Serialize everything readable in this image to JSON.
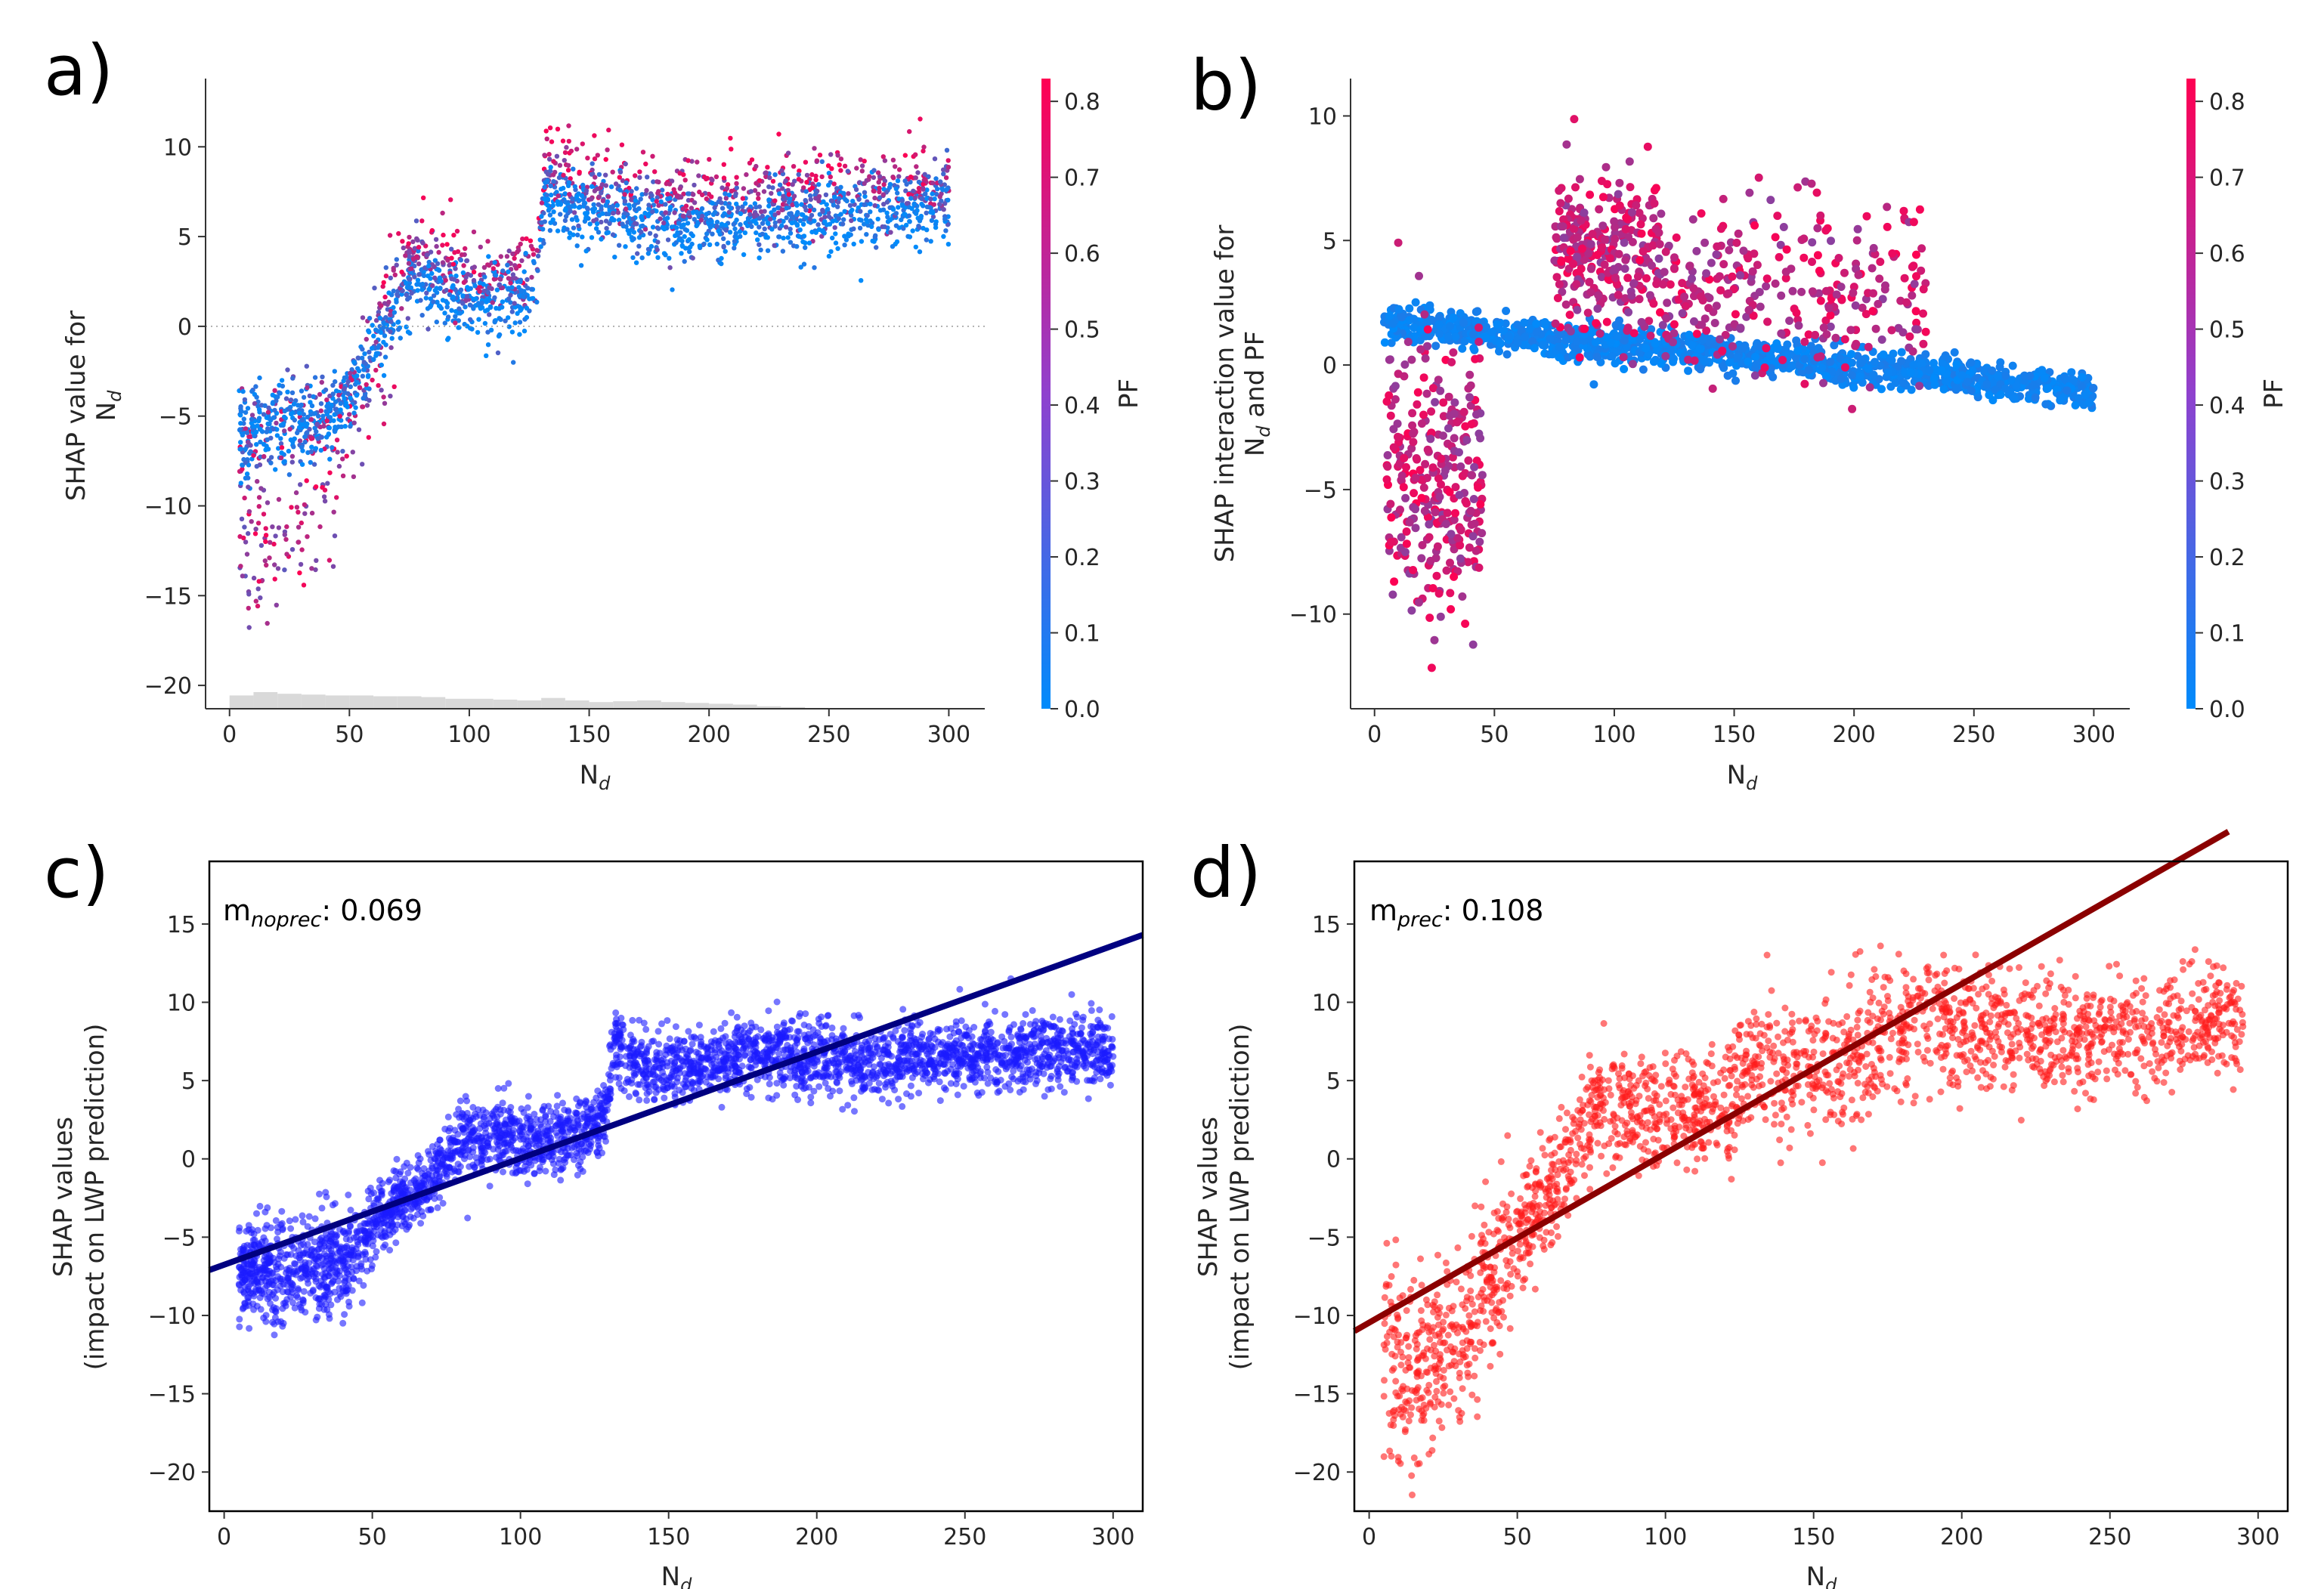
{
  "colors": {
    "pf_low": "#008bfb",
    "pf_high": "#ff0052",
    "c_points": "#1a1aff",
    "c_line": "#000080",
    "d_points": "#ff1a1a",
    "d_line": "#8b0000",
    "hist": "#d9d9d9"
  },
  "chart_data": [
    {
      "panel": "a)",
      "type": "scatter",
      "xlabel": "N",
      "xlabel_sub": "d",
      "ylabel_line1": "SHAP value for",
      "ylabel_line2": "N",
      "ylabel_line2_sub": "d",
      "xlim": [
        -10,
        315
      ],
      "ylim": [
        -21.3,
        13.8
      ],
      "xticks": [
        0,
        50,
        100,
        150,
        200,
        250,
        300
      ],
      "yticks": [
        -20,
        -15,
        -10,
        -5,
        0,
        5,
        10
      ],
      "xtick_labels": [
        "0",
        "50",
        "100",
        "150",
        "200",
        "250",
        "300"
      ],
      "ytick_labels": [
        "−20",
        "−15",
        "−10",
        "−5",
        "0",
        "5",
        "10"
      ],
      "zero_line": true,
      "color_feature": "PF",
      "colorbar": {
        "label": "PF",
        "range": [
          0.0,
          0.83
        ],
        "ticks": [
          "0.0",
          "0.1",
          "0.2",
          "0.3",
          "0.4",
          "0.5",
          "0.6",
          "0.7",
          "0.8"
        ]
      },
      "histogram": {
        "x": [
          5,
          15,
          25,
          35,
          45,
          55,
          65,
          75,
          85,
          95,
          105,
          115,
          125,
          135,
          145,
          155,
          165,
          175,
          185,
          195,
          205,
          215,
          225,
          235,
          245
        ],
        "height": [
          0.8,
          1.0,
          0.9,
          0.85,
          0.8,
          0.8,
          0.75,
          0.75,
          0.7,
          0.6,
          0.6,
          0.55,
          0.5,
          0.65,
          0.5,
          0.4,
          0.45,
          0.5,
          0.4,
          0.35,
          0.3,
          0.25,
          0.15,
          0.1,
          0.05
        ]
      },
      "trend": {
        "x": [
          4,
          10,
          20,
          30,
          40,
          50,
          60,
          70,
          80,
          90,
          100,
          110,
          120,
          128,
          132,
          140,
          150,
          160,
          170,
          180,
          190,
          200,
          220,
          240,
          260,
          280,
          300
        ],
        "y": [
          -6,
          -6,
          -5.5,
          -5.3,
          -5,
          -4,
          -1.5,
          1,
          2.5,
          1.2,
          0.8,
          1,
          1,
          1.5,
          7,
          6.5,
          6,
          5.8,
          5.5,
          5.3,
          5.3,
          5.2,
          5.5,
          5.8,
          6,
          6.2,
          6.3
        ]
      },
      "low_pf_extension": {
        "x": [
          4,
          10,
          20,
          30,
          40,
          50,
          60,
          70
        ],
        "y": [
          -12,
          -13,
          -12,
          -10,
          -8,
          -5,
          -3,
          -1
        ]
      },
      "high_pf_region_note": "high PF points spread above trend for Nd 60-100 and 140-200"
    },
    {
      "panel": "b)",
      "type": "scatter",
      "xlabel": "N",
      "xlabel_sub": "d",
      "ylabel_line1": "SHAP interaction value for",
      "ylabel_line2": "N",
      "ylabel_line2_sub": "d",
      "ylabel_line2_tail": " and PF",
      "xlim": [
        -10,
        315
      ],
      "ylim": [
        -13.8,
        11.5
      ],
      "xticks": [
        0,
        50,
        100,
        150,
        200,
        250,
        300
      ],
      "yticks": [
        -10,
        -5,
        0,
        5,
        10
      ],
      "xtick_labels": [
        "0",
        "50",
        "100",
        "150",
        "200",
        "250",
        "300"
      ],
      "ytick_labels": [
        "−10",
        "−5",
        "0",
        "5",
        "10"
      ],
      "color_feature": "PF",
      "colorbar": {
        "label": "PF",
        "range": [
          0.0,
          0.83
        ],
        "ticks": [
          "0.0",
          "0.1",
          "0.2",
          "0.3",
          "0.4",
          "0.5",
          "0.6",
          "0.7",
          "0.8"
        ]
      },
      "low_pf_band": {
        "x": [
          4,
          300
        ],
        "y": [
          1.7,
          -1.0
        ]
      },
      "high_pf_clusters": [
        {
          "x_range": [
            5,
            45
          ],
          "y_center": -5,
          "y_spread": 5
        },
        {
          "x_range": [
            75,
            120
          ],
          "y_center": 4.5,
          "y_spread": 2.5
        },
        {
          "x_range": [
            120,
            230
          ],
          "y_center": 3,
          "y_spread": 3
        }
      ]
    },
    {
      "panel": "c)",
      "type": "scatter",
      "xlabel": "N",
      "xlabel_sub": "d",
      "ylabel_line1": "SHAP values",
      "ylabel_line2": "(impact on LWP prediction)",
      "xlim": [
        -5,
        310
      ],
      "ylim": [
        -22.5,
        19
      ],
      "xticks": [
        0,
        50,
        100,
        150,
        200,
        250,
        300
      ],
      "yticks": [
        -20,
        -15,
        -10,
        -5,
        0,
        5,
        10,
        15
      ],
      "xtick_labels": [
        "0",
        "50",
        "100",
        "150",
        "200",
        "250",
        "300"
      ],
      "ytick_labels": [
        "−20",
        "−15",
        "−10",
        "−5",
        "0",
        "5",
        "10",
        "15"
      ],
      "annotation_m": "m",
      "annotation_sub": "noprec",
      "annotation_value": ": 0.069",
      "slope": 0.069,
      "regression_line": {
        "x": [
          -5,
          310
        ],
        "y": [
          -7.1,
          14.3
        ]
      },
      "trend": {
        "x": [
          4,
          10,
          20,
          30,
          40,
          50,
          60,
          70,
          80,
          90,
          100,
          110,
          120,
          128,
          132,
          140,
          150,
          160,
          170,
          180,
          190,
          200,
          220,
          240,
          260,
          280,
          300
        ],
        "y": [
          -7,
          -7.5,
          -7.3,
          -7,
          -6.5,
          -4.5,
          -2.5,
          -1.5,
          1.5,
          1.5,
          1.2,
          1.3,
          1.5,
          2.5,
          7.5,
          6,
          5.8,
          6,
          6.3,
          7,
          6.8,
          6.5,
          6.2,
          6.5,
          6.8,
          6.8,
          7
        ]
      }
    },
    {
      "panel": "d)",
      "type": "scatter",
      "xlabel": "N",
      "xlabel_sub": "d",
      "ylabel_line1": "SHAP values",
      "ylabel_line2": "(impact on LWP prediction)",
      "xlim": [
        -5,
        310
      ],
      "ylim": [
        -22.5,
        19
      ],
      "xticks": [
        0,
        50,
        100,
        150,
        200,
        250,
        300
      ],
      "yticks": [
        -20,
        -15,
        -10,
        -5,
        0,
        5,
        10,
        15
      ],
      "xtick_labels": [
        "0",
        "50",
        "100",
        "150",
        "200",
        "250",
        "300"
      ],
      "ytick_labels": [
        "−20",
        "−15",
        "−10",
        "−5",
        "0",
        "5",
        "10",
        "15"
      ],
      "annotation_m": "m",
      "annotation_sub": "prec",
      "annotation_value": ": 0.108",
      "slope": 0.108,
      "regression_line": {
        "x": [
          -5,
          290
        ],
        "y": [
          -11.0,
          20.9
        ]
      },
      "trend": {
        "x": [
          5,
          10,
          20,
          30,
          40,
          50,
          60,
          70,
          80,
          90,
          100,
          110,
          120,
          130,
          140,
          150,
          160,
          170,
          180,
          190,
          200,
          220,
          240,
          260,
          280,
          295
        ],
        "y": [
          -12,
          -13,
          -13,
          -11,
          -8,
          -5,
          -2,
          1,
          4,
          3,
          2.5,
          3,
          3.5,
          6,
          6,
          5.5,
          6,
          7,
          8.5,
          9,
          8.5,
          8,
          7.5,
          8,
          8.5,
          9
        ]
      }
    }
  ]
}
